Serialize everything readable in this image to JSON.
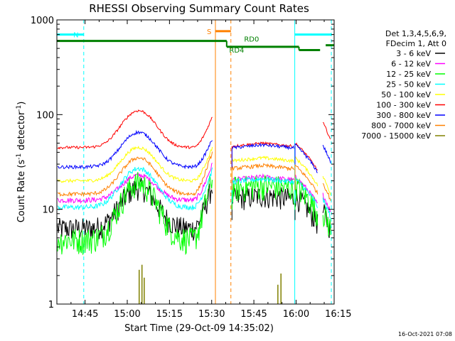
{
  "chart_data": {
    "type": "line",
    "title": "RHESSI Observing Summary Count Rates",
    "xlabel": "Start Time (29-Oct-09 14:35:02)",
    "ylabel_main": "Count Rate (s",
    "ylabel_sup1": "-1",
    "ylabel_mid": " detector",
    "ylabel_sup2": "-1",
    "ylabel_end": ")",
    "y_scale": "log",
    "ylim": [
      1,
      1000
    ],
    "xlim_minutes": [
      -0.05,
      98.5
    ],
    "x_ticks": [
      {
        "label": "14:45",
        "min": 9.97
      },
      {
        "label": "15:00",
        "min": 24.97
      },
      {
        "label": "15:15",
        "min": 39.97
      },
      {
        "label": "15:30",
        "min": 54.97
      },
      {
        "label": "15:45",
        "min": 69.97
      },
      {
        "label": "16:00",
        "min": 84.97
      },
      {
        "label": "16:15",
        "min": 99.97
      }
    ],
    "y_ticks": [
      {
        "label": "1",
        "value": 1
      },
      {
        "label": "10",
        "value": 10
      },
      {
        "label": "100",
        "value": 100
      },
      {
        "label": "1000",
        "value": 1000
      }
    ],
    "legend_title": [
      "Det 1,3,4,5,6,9,",
      "FDecim 1, Att 0"
    ],
    "legend_placement": "right",
    "gaps_minutes": [
      [
        56.2,
        61.8
      ]
    ],
    "series": [
      {
        "name": "3 - 6 keV",
        "color": "#000000",
        "base": 6.3,
        "peak": 17,
        "noise": 0.35,
        "pre": [
          5.5,
          18
        ],
        "post": 14,
        "tail": 6
      },
      {
        "name": "6 - 12 keV",
        "color": "#ff00ff",
        "base": 12.5,
        "peak": 23,
        "noise": 0.08,
        "pre": [
          9,
          30
        ],
        "post": 22,
        "tail": 9
      },
      {
        "name": "12 - 25 keV",
        "color": "#00ff00",
        "base": 4.8,
        "peak": 19,
        "noise": 0.4,
        "pre": [
          5,
          22
        ],
        "post": 18,
        "tail": 6
      },
      {
        "name": "25 - 50 keV",
        "color": "#00ffff",
        "base": 10.5,
        "peak": 27,
        "noise": 0.08,
        "pre": [
          8,
          26
        ],
        "post": 21,
        "tail": 8
      },
      {
        "name": "50 - 100 keV",
        "color": "#ffff00",
        "base": 20,
        "peak": 45,
        "noise": 0.05,
        "pre": [
          12,
          45
        ],
        "post": 35,
        "tail": 14
      },
      {
        "name": "100 - 300 keV",
        "color": "#ff0000",
        "base": 45,
        "peak": 110,
        "noise": 0.04,
        "pre": [
          30,
          95
        ],
        "post": 50,
        "tail": 52
      },
      {
        "name": "300 - 800 keV",
        "color": "#0000ff",
        "base": 28,
        "peak": 65,
        "noise": 0.05,
        "pre": [
          20,
          55
        ],
        "post": 48,
        "tail": 30
      },
      {
        "name": "800 - 7000 keV",
        "color": "#ff8000",
        "base": 14.5,
        "peak": 35,
        "noise": 0.06,
        "pre": [
          14,
          40
        ],
        "post": 29,
        "tail": 12
      },
      {
        "name": "7000 - 15000 keV",
        "color": "#808000",
        "base": 1,
        "peak": 1,
        "noise": 0,
        "pre": [
          1,
          1
        ],
        "post": 1,
        "tail": 1
      }
    ],
    "annotations": {
      "night_N": {
        "label": "N",
        "color": "#00ffff",
        "bars": [
          [
            0,
            9.5
          ],
          [
            84.5,
            97.5
          ]
        ],
        "level": 700,
        "start": 9.5,
        "end": 84.5
      },
      "saa_S": {
        "label": "S",
        "color": "#ff8000",
        "bars": [
          [
            56.3,
            61.8
          ]
        ],
        "level": 760,
        "start": 56.3,
        "end": 61.8
      },
      "decim_RD0": {
        "label": "RD0",
        "color": "#008000",
        "start": 61.5
      },
      "decim_RD4": {
        "label": "RD4",
        "color": "#008000"
      }
    }
  },
  "footer": {
    "stamp": "16-Oct-2021 07:08"
  }
}
